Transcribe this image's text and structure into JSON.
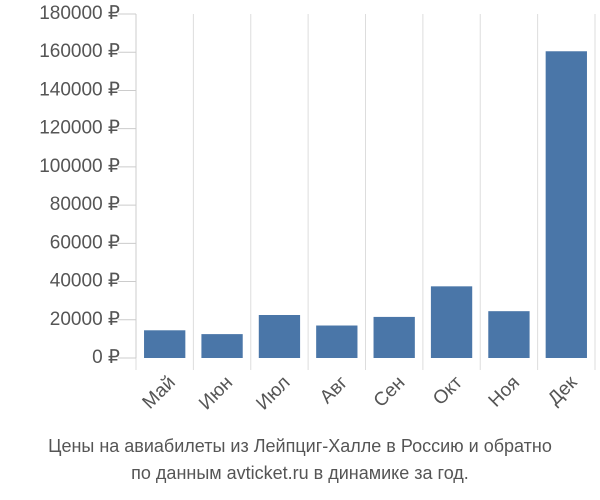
{
  "chart_data": {
    "type": "bar",
    "caption": [
      "Цены на авиабилеты из Лейпциг-Халле в Россию и обратно",
      "по данным avticket.ru в динамике за год."
    ],
    "categories": [
      "Май",
      "Июн",
      "Июл",
      "Авг",
      "Сен",
      "Окт",
      "Ноя",
      "Дек"
    ],
    "values": [
      14500,
      12500,
      22500,
      17000,
      21500,
      37500,
      24500,
      160500
    ],
    "color": "#4a76a8",
    "ylim": [
      0,
      180000
    ],
    "yticks": [
      {
        "value": 0,
        "label": "0 ₽"
      },
      {
        "value": 20000,
        "label": "20000 ₽"
      },
      {
        "value": 40000,
        "label": "40000 ₽"
      },
      {
        "value": 60000,
        "label": "60000 ₽"
      },
      {
        "value": 80000,
        "label": "80000 ₽"
      },
      {
        "value": 100000,
        "label": "100000 ₽"
      },
      {
        "value": 120000,
        "label": "120000 ₽"
      },
      {
        "value": 140000,
        "label": "140000 ₽"
      },
      {
        "value": 160000,
        "label": "160000 ₽"
      },
      {
        "value": 180000,
        "label": "180000 ₽"
      }
    ]
  }
}
